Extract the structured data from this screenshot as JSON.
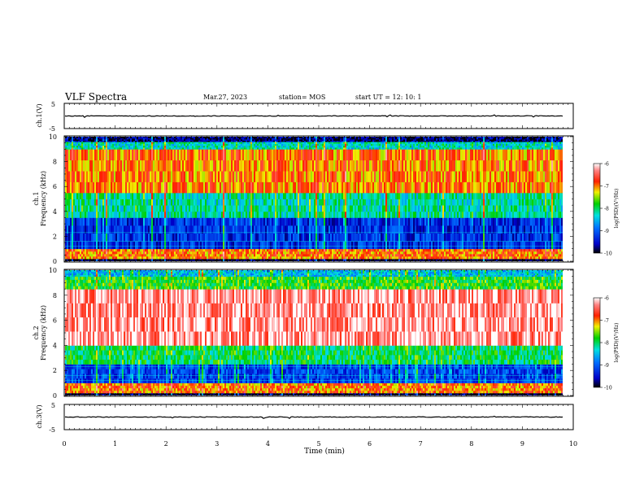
{
  "header": {
    "title": "VLF Spectra",
    "date": "Mar.27, 2023",
    "station": "station= MOS",
    "start": "start  UT =   12: 10: 1"
  },
  "chart_data": [
    {
      "type": "line",
      "ylabel": "ch.1(V)",
      "yticks": [
        "5",
        "-5"
      ],
      "ylim": [
        -5,
        5
      ],
      "x": [
        0,
        10
      ],
      "y": [
        0,
        0
      ]
    },
    {
      "type": "heatmap",
      "ylabel": "ch.1\nFrequency (kHz)",
      "ylim": [
        0,
        10
      ],
      "yticks": [
        "0",
        "2",
        "4",
        "6",
        "8",
        "10"
      ],
      "colorbar": {
        "label": "log(PSD)(V²/Hz)",
        "ticks": [
          "-6",
          "-7",
          "-8",
          "-9",
          "-10"
        ],
        "range": [
          -10,
          -6
        ]
      },
      "spectral_bands_khz": [
        {
          "from": 0.0,
          "to": 0.2,
          "level": -10
        },
        {
          "from": 0.2,
          "to": 1.0,
          "level": -7
        },
        {
          "from": 1.0,
          "to": 3.5,
          "level": -9.3
        },
        {
          "from": 3.5,
          "to": 5.5,
          "level": -8.2
        },
        {
          "from": 5.5,
          "to": 9.0,
          "level": -7.0
        },
        {
          "from": 9.0,
          "to": 9.6,
          "level": -8.3
        },
        {
          "from": 9.6,
          "to": 10.0,
          "level": -9.8
        }
      ]
    },
    {
      "type": "heatmap",
      "ylabel": "ch.2\nFrequency (kHz)",
      "ylim": [
        0,
        10
      ],
      "yticks": [
        "0",
        "2",
        "4",
        "6",
        "8",
        "10"
      ],
      "colorbar": {
        "label": "log(PSD)(V²/Hz)",
        "ticks": [
          "-6",
          "-7",
          "-8",
          "-9",
          "-10"
        ],
        "range": [
          -10,
          -6
        ]
      },
      "spectral_bands_khz": [
        {
          "from": 0.0,
          "to": 0.2,
          "level": -10
        },
        {
          "from": 0.2,
          "to": 1.0,
          "level": -7
        },
        {
          "from": 1.0,
          "to": 2.5,
          "level": -9.2
        },
        {
          "from": 2.5,
          "to": 4.0,
          "level": -8.0
        },
        {
          "from": 4.0,
          "to": 8.5,
          "level": -6.3
        },
        {
          "from": 8.5,
          "to": 9.5,
          "level": -7.8
        },
        {
          "from": 9.5,
          "to": 10.0,
          "level": -8.5
        }
      ]
    },
    {
      "type": "line",
      "ylabel": "ch.3(V)",
      "yticks": [
        "5",
        "-5"
      ],
      "ylim": [
        -5,
        5
      ],
      "x": [
        0,
        10
      ],
      "y": [
        0,
        0
      ],
      "xlabel": "Time  (min)",
      "xticks": [
        "0",
        "1",
        "2",
        "3",
        "4",
        "5",
        "6",
        "7",
        "8",
        "9",
        "10"
      ],
      "xlim": [
        0,
        10
      ]
    }
  ]
}
